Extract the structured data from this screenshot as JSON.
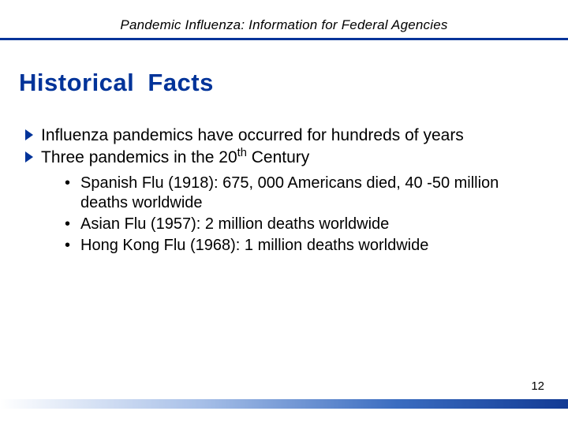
{
  "header": {
    "title": "Pandemic Influenza: Information for Federal Agencies"
  },
  "slide_title": "Historical  Facts",
  "bullets": [
    {
      "text": "Influenza pandemics have occurred for hundreds of years"
    },
    {
      "text_pre": "Three pandemics in the 20",
      "sup": "th",
      "text_post": " Century"
    }
  ],
  "sub_bullets": [
    "Spanish Flu (1918): 675, 000 Americans died, 40 -50 million deaths worldwide",
    "Asian Flu (1957): 2 million deaths worldwide",
    "Hong Kong Flu (1968): 1 million deaths worldwide"
  ],
  "page_number": "12",
  "colors": {
    "accent": "#003399",
    "text": "#000000",
    "background": "#ffffff"
  }
}
